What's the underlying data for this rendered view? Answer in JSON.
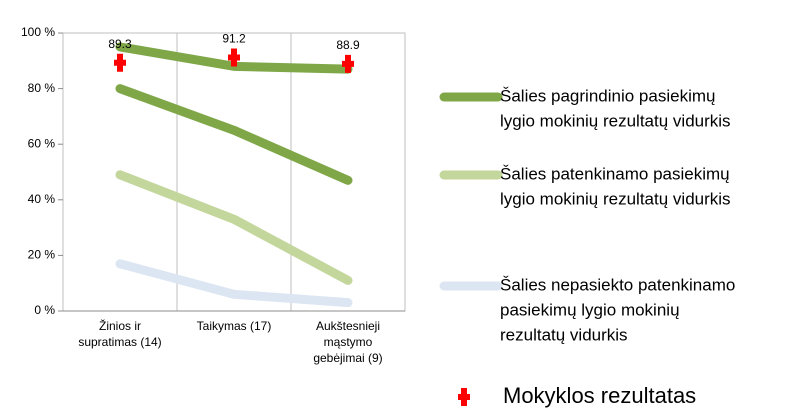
{
  "chart_data": {
    "type": "line",
    "categories": [
      [
        "Žinios ir",
        "supratimas (14)"
      ],
      [
        "Taikymas (17)"
      ],
      [
        "Aukštesnieji",
        "mąstymo",
        "gebėjimai (9)"
      ]
    ],
    "ylim": [
      0,
      100
    ],
    "yticks": [
      {
        "value": 0,
        "label": "0 %"
      },
      {
        "value": 20,
        "label": "20 %"
      },
      {
        "value": 40,
        "label": "40 %"
      },
      {
        "value": 60,
        "label": "60 %"
      },
      {
        "value": 80,
        "label": "80 %"
      },
      {
        "value": 100,
        "label": "100 %"
      }
    ],
    "series": [
      {
        "color": "#7fa748",
        "values": [
          95,
          88,
          87
        ]
      },
      {
        "name": [
          "Šalies pagrindinio pasiekimų",
          "lygio mokinių rezultatų vidurkis"
        ],
        "color": "#7fa748",
        "values": [
          80,
          65,
          47
        ]
      },
      {
        "name": [
          "Šalies patenkinamo pasiekimų",
          "lygio mokinių rezultatų vidurkis"
        ],
        "color": "#c3d69b",
        "values": [
          49,
          33,
          11
        ]
      },
      {
        "name": [
          "Šalies nepasiekto patenkinamo",
          "pasiekimų lygio mokinių",
          "rezultatų vidurkis"
        ],
        "color": "#dce6f2",
        "values": [
          17,
          6,
          3
        ]
      },
      {
        "name": [
          "Mokyklos rezultatas"
        ],
        "color": "#ff0000",
        "marker": "cross",
        "values": [
          89.3,
          91.2,
          88.9
        ]
      }
    ]
  }
}
